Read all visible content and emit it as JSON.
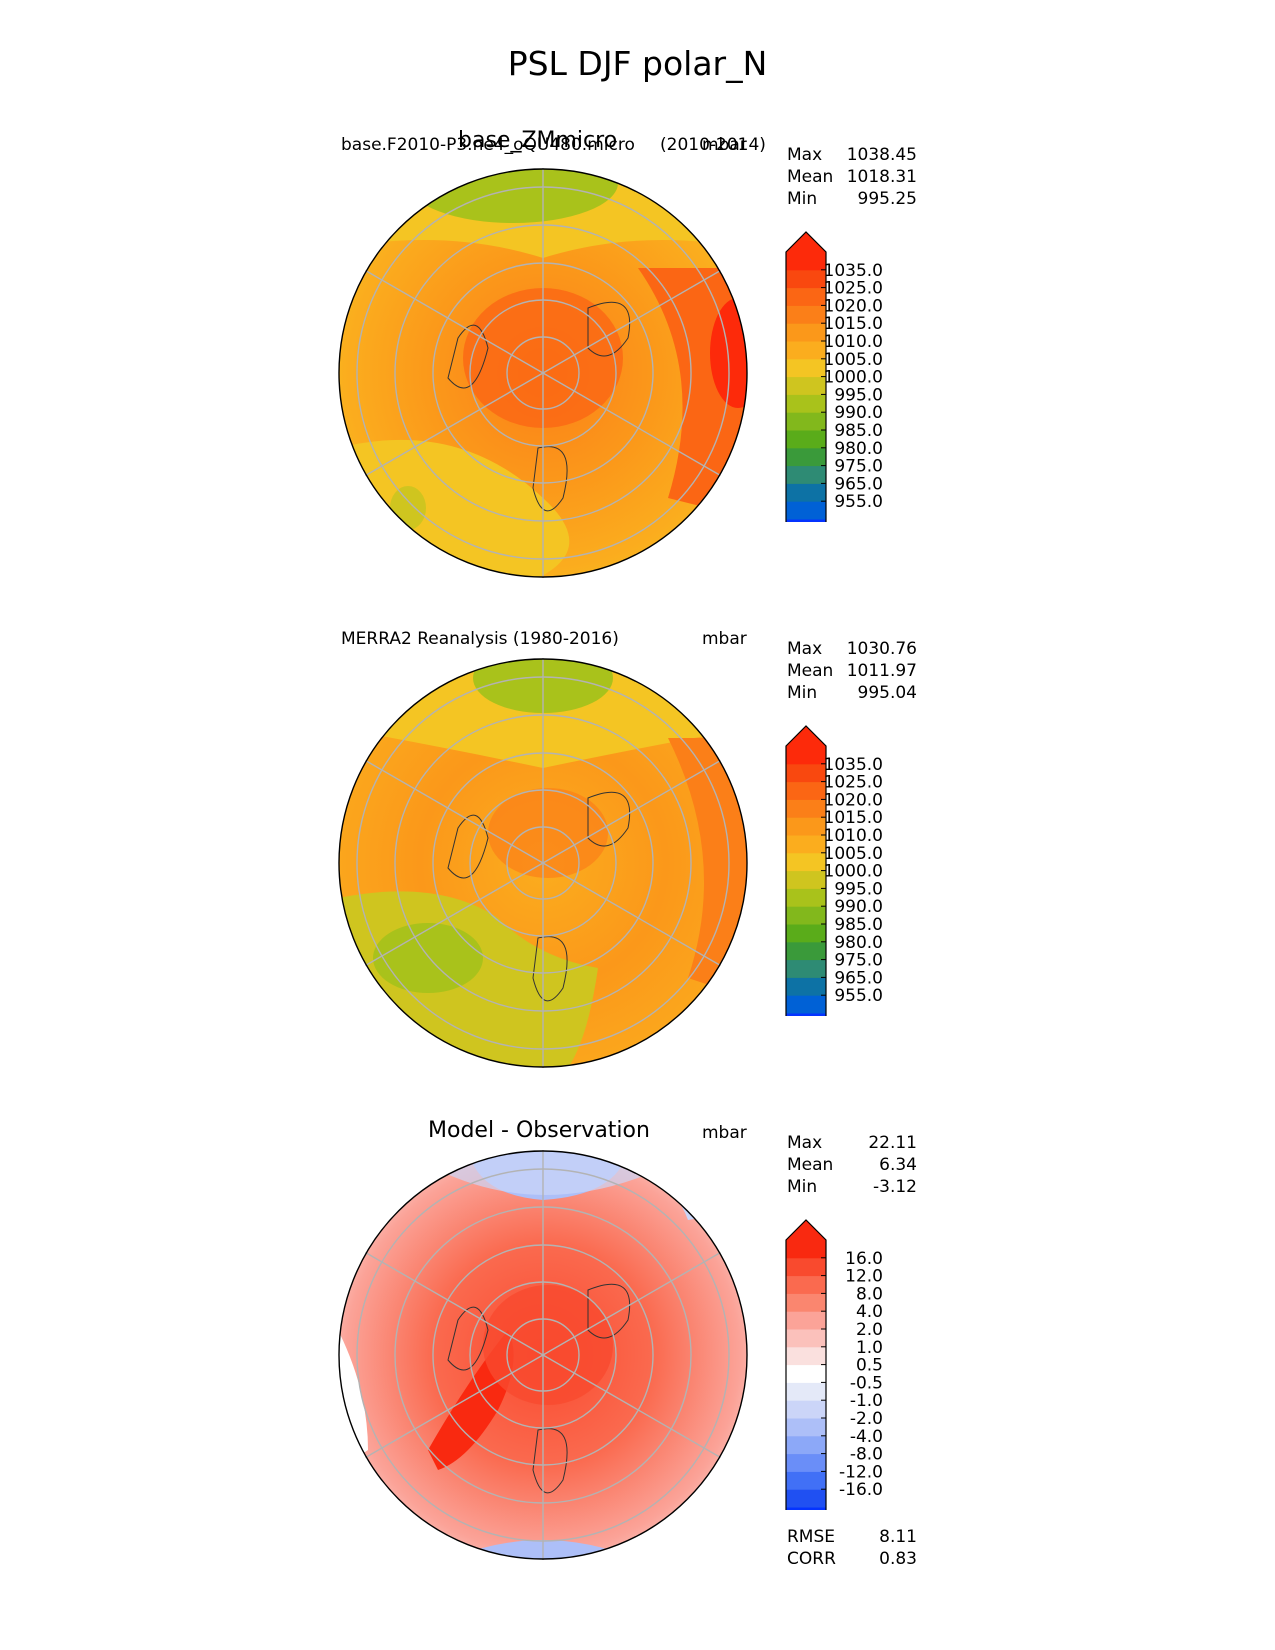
{
  "figure_title": "PSL DJF polar_N",
  "colors": {
    "psl": [
      "#0433ff",
      "#0061d6",
      "#0d72a5",
      "#2e8b74",
      "#3a9a3a",
      "#5aac1a",
      "#82b81c",
      "#a9c21b",
      "#cfc51f",
      "#f4c523",
      "#fbad1e",
      "#fb981a",
      "#fb7f18",
      "#fb6614",
      "#f9480f",
      "#fd2a0a"
    ],
    "diff": [
      "#0433ff",
      "#2050f2",
      "#4170f6",
      "#6a8ef8",
      "#8ca8f8",
      "#adbff8",
      "#cbd5f8",
      "#e4e9f8",
      "#ffffff",
      "#fae0de",
      "#fbc1bb",
      "#fba398",
      "#fa866f",
      "#fa6a4f",
      "#f94a2e",
      "#f92910"
    ]
  },
  "panels": [
    {
      "left_title": "base.F2010-P3.ne4_oQU480.micro",
      "center_title": "base_ZMmicro",
      "subtitle": "(2010-2014)",
      "units": "mbar",
      "stats": {
        "max_label": "Max",
        "max": "1038.45",
        "mean_label": "Mean",
        "mean": "1018.31",
        "min_label": "Min",
        "min": "995.25"
      }
    },
    {
      "left_title": "MERRA2 Reanalysis (1980-2016)",
      "units": "mbar",
      "stats": {
        "max_label": "Max",
        "max": "1030.76",
        "mean_label": "Mean",
        "mean": "1011.97",
        "min_label": "Min",
        "min": "995.04"
      }
    },
    {
      "center_title": "Model - Observation",
      "units": "mbar",
      "stats": {
        "max_label": "Max",
        "max": "22.11",
        "mean_label": "Mean",
        "mean": "6.34",
        "min_label": "Min",
        "min": "-3.12"
      },
      "metrics": {
        "rmse_label": "RMSE",
        "rmse": "8.11",
        "corr_label": "CORR",
        "corr": "0.83"
      }
    }
  ],
  "chart_data": [
    {
      "type": "heatmap",
      "title": "base_ZMmicro",
      "projection": "north polar stereographic",
      "field": "sea level pressure",
      "units": "mbar",
      "colorbar_ticks": [
        "1035.0",
        "1025.0",
        "1020.0",
        "1015.0",
        "1010.0",
        "1005.0",
        "1000.0",
        "995.0",
        "990.0",
        "985.0",
        "980.0",
        "975.0",
        "965.0",
        "955.0"
      ],
      "range": [
        995.25,
        1038.45
      ],
      "mean": 1018.31
    },
    {
      "type": "heatmap",
      "title": "MERRA2 Reanalysis (1980-2016)",
      "projection": "north polar stereographic",
      "field": "sea level pressure",
      "units": "mbar",
      "colorbar_ticks": [
        "1035.0",
        "1025.0",
        "1020.0",
        "1015.0",
        "1010.0",
        "1005.0",
        "1000.0",
        "995.0",
        "990.0",
        "985.0",
        "980.0",
        "975.0",
        "965.0",
        "955.0"
      ],
      "range": [
        995.04,
        1030.76
      ],
      "mean": 1011.97
    },
    {
      "type": "heatmap",
      "title": "Model - Observation",
      "projection": "north polar stereographic",
      "field": "sea level pressure difference",
      "units": "mbar",
      "colorbar_ticks": [
        "16.0",
        "12.0",
        "8.0",
        "4.0",
        "2.0",
        "1.0",
        "0.5",
        "-0.5",
        "-1.0",
        "-2.0",
        "-4.0",
        "-8.0",
        "-12.0",
        "-16.0"
      ],
      "range": [
        -3.12,
        22.11
      ],
      "mean": 6.34,
      "rmse": 8.11,
      "corr": 0.83
    }
  ]
}
